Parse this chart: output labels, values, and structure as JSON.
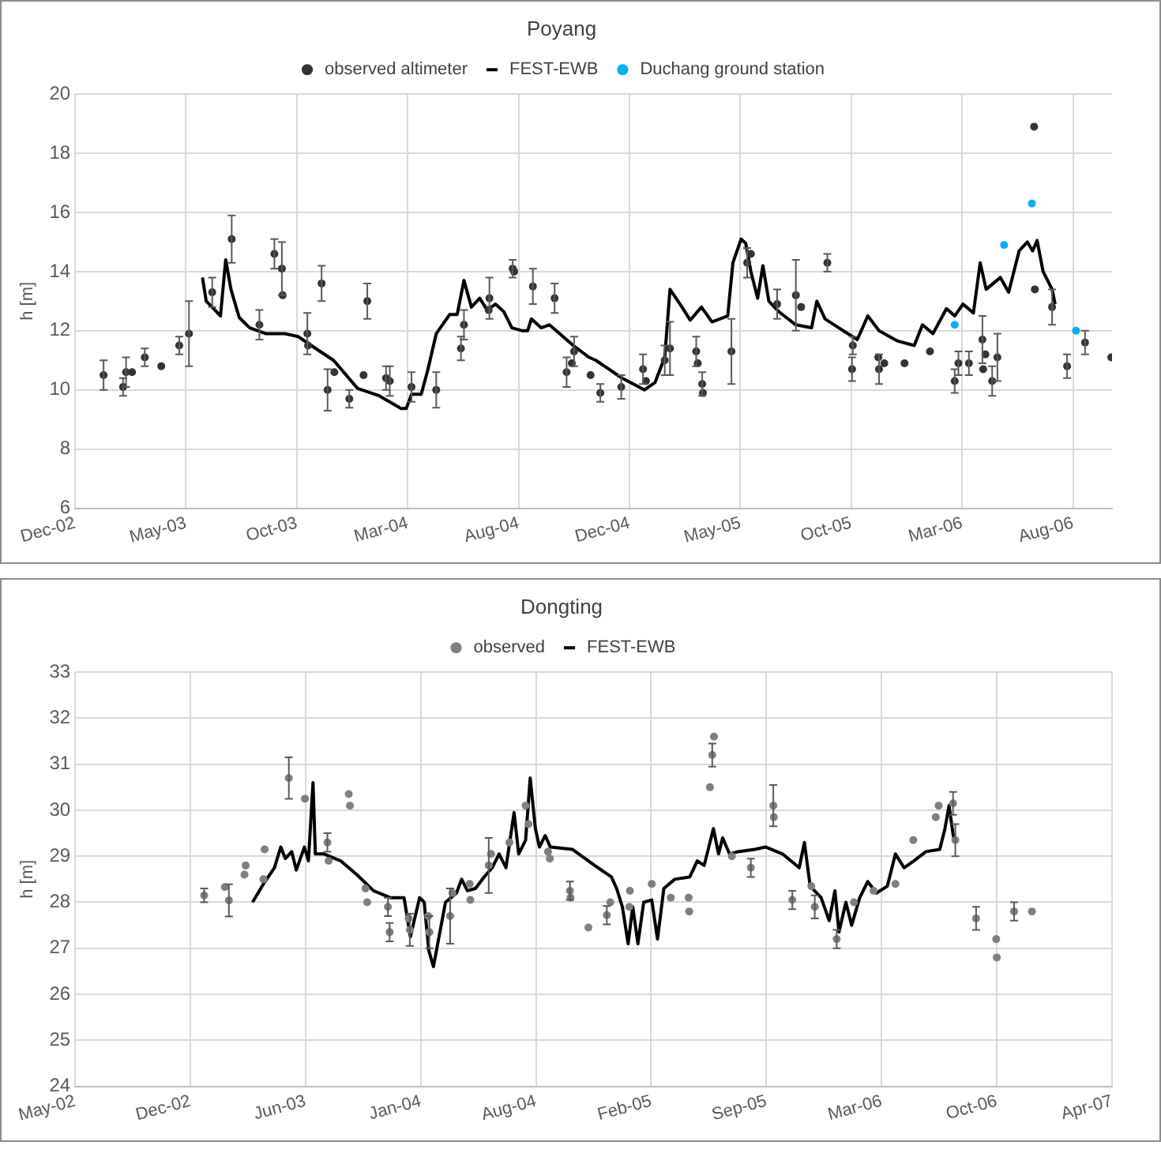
{
  "chart_data": [
    {
      "type": "scatter",
      "title": "Poyang",
      "ylabel": "h [m]",
      "legend": "top",
      "grid": true,
      "xlim": [
        "2002-12-20",
        "2006-10-04"
      ],
      "xticks": [
        {
          "value": "2002-12-20",
          "label": "Dec-02"
        },
        {
          "value": "2003-05-17",
          "label": "May-03"
        },
        {
          "value": "2003-10-12",
          "label": "Oct-03"
        },
        {
          "value": "2004-03-08",
          "label": "Mar-04"
        },
        {
          "value": "2004-08-03",
          "label": "Aug-04"
        },
        {
          "value": "2004-12-29",
          "label": "Dec-04"
        },
        {
          "value": "2005-05-26",
          "label": "May-05"
        },
        {
          "value": "2005-10-21",
          "label": "Oct-05"
        },
        {
          "value": "2006-03-18",
          "label": "Mar-06"
        },
        {
          "value": "2006-08-13",
          "label": "Aug-06"
        }
      ],
      "ylim": [
        6,
        20
      ],
      "yticks": [
        6,
        8,
        10,
        12,
        14,
        16,
        18,
        20
      ],
      "series": [
        {
          "name": "observed altimeter",
          "type": "scatter",
          "marker": "circle",
          "color": "#333333",
          "x": [
            "2003-01-27",
            "2003-02-22",
            "2003-02-26",
            "2003-03-06",
            "2003-03-23",
            "2003-04-14",
            "2003-05-08",
            "2003-05-21",
            "2003-06-21",
            "2003-07-17",
            "2003-08-23",
            "2003-09-12",
            "2003-09-22",
            "2003-09-23",
            "2003-10-26",
            "2003-10-27",
            "2003-11-14",
            "2003-11-22",
            "2003-12-01",
            "2003-12-21",
            "2004-01-09",
            "2004-01-14",
            "2004-02-08",
            "2004-02-13",
            "2004-03-13",
            "2004-04-15",
            "2004-05-18",
            "2004-05-22",
            "2004-06-24",
            "2004-06-25",
            "2004-07-26",
            "2004-07-28",
            "2004-08-22",
            "2004-09-20",
            "2004-10-06",
            "2004-10-13",
            "2004-10-16",
            "2004-11-07",
            "2004-11-20",
            "2004-12-18",
            "2005-01-16",
            "2005-01-20",
            "2005-02-14",
            "2005-02-21",
            "2005-03-28",
            "2005-03-30",
            "2005-04-05",
            "2005-04-06",
            "2005-05-14",
            "2005-06-04",
            "2005-06-09",
            "2005-07-14",
            "2005-08-08",
            "2005-08-15",
            "2005-09-19",
            "2005-10-23",
            "2005-10-22",
            "2005-11-26",
            "2005-11-27",
            "2005-12-04",
            "2005-12-31",
            "2006-02-03",
            "2006-03-08",
            "2006-03-13",
            "2006-03-27",
            "2006-04-14",
            "2006-04-15",
            "2006-04-18",
            "2006-04-27",
            "2006-05-04",
            "2006-06-22",
            "2006-06-23",
            "2006-07-16",
            "2006-08-05",
            "2006-08-29",
            "2006-10-03"
          ],
          "values": [
            10.5,
            10.1,
            10.6,
            10.6,
            11.1,
            10.8,
            11.5,
            11.9,
            13.3,
            15.1,
            12.2,
            14.6,
            14.1,
            13.2,
            11.9,
            11.5,
            13.6,
            10.0,
            10.6,
            9.7,
            10.5,
            13.0,
            10.4,
            10.3,
            10.1,
            10.0,
            11.4,
            12.2,
            12.7,
            13.1,
            14.1,
            14.0,
            13.5,
            13.1,
            10.6,
            10.9,
            11.3,
            10.5,
            9.9,
            10.1,
            10.7,
            10.3,
            11.0,
            11.4,
            11.3,
            10.9,
            10.2,
            9.9,
            11.3,
            14.3,
            14.6,
            12.9,
            13.2,
            12.8,
            14.3,
            11.5,
            10.7,
            11.1,
            10.7,
            10.9,
            10.9,
            11.3,
            10.3,
            10.9,
            10.9,
            11.7,
            10.7,
            11.2,
            10.3,
            11.1,
            18.9,
            13.4,
            12.8,
            10.8,
            11.6,
            11.1
          ],
          "errors": [
            0.5,
            0.3,
            0.5,
            null,
            0.3,
            null,
            0.3,
            1.1,
            0.5,
            0.8,
            0.5,
            0.5,
            0.9,
            null,
            0.7,
            null,
            0.6,
            0.7,
            null,
            0.3,
            null,
            0.6,
            0.4,
            0.5,
            0.5,
            0.6,
            0.4,
            0.5,
            null,
            0.7,
            0.3,
            null,
            0.6,
            0.5,
            0.5,
            null,
            0.5,
            null,
            0.3,
            0.4,
            0.5,
            null,
            0.5,
            0.9,
            0.5,
            null,
            0.4,
            null,
            1.1,
            0.5,
            null,
            0.5,
            1.2,
            null,
            0.3,
            0.3,
            0.4,
            null,
            0.5,
            null,
            null,
            null,
            0.4,
            0.4,
            0.4,
            0.8,
            null,
            null,
            0.5,
            0.8,
            null,
            null,
            0.6,
            0.4,
            0.4,
            null
          ]
        },
        {
          "name": "FEST-EWB",
          "type": "line",
          "marker": "none",
          "color": "#000000",
          "x": [
            "2003-06-08",
            "2003-06-13",
            "2003-06-21",
            "2003-07-02",
            "2003-07-09",
            "2003-07-16",
            "2003-07-27",
            "2003-08-10",
            "2003-09-01",
            "2003-09-26",
            "2003-10-14",
            "2003-11-12",
            "2003-11-30",
            "2004-01-01",
            "2004-01-30",
            "2004-02-28",
            "2004-03-06",
            "2004-03-13",
            "2004-03-26",
            "2004-04-04",
            "2004-04-15",
            "2004-05-03",
            "2004-05-13",
            "2004-05-22",
            "2004-06-01",
            "2004-06-12",
            "2004-06-22",
            "2004-07-03",
            "2004-07-14",
            "2004-07-25",
            "2004-08-08",
            "2004-08-15",
            "2004-08-20",
            "2004-09-02",
            "2004-09-13",
            "2004-10-15",
            "2004-11-05",
            "2004-11-14",
            "2004-12-19",
            "2005-01-18",
            "2005-02-01",
            "2005-02-14",
            "2005-02-21",
            "2005-03-08",
            "2005-03-20",
            "2005-04-04",
            "2005-04-18",
            "2005-05-09",
            "2005-05-16",
            "2005-05-27",
            "2005-06-02",
            "2005-06-09",
            "2005-06-18",
            "2005-06-25",
            "2005-07-03",
            "2005-07-16",
            "2005-08-08",
            "2005-08-29",
            "2005-09-05",
            "2005-09-16",
            "2005-10-12",
            "2005-10-29",
            "2005-11-12",
            "2005-11-27",
            "2005-12-22",
            "2006-01-13",
            "2006-01-24",
            "2006-02-07",
            "2006-02-25",
            "2006-03-08",
            "2006-03-19",
            "2006-04-02",
            "2006-04-11",
            "2006-04-19",
            "2006-05-08",
            "2006-05-19",
            "2006-06-02",
            "2006-06-13",
            "2006-06-20",
            "2006-06-26",
            "2006-07-04",
            "2006-07-16",
            "2006-07-20"
          ],
          "values": [
            13.8,
            13.0,
            12.8,
            12.5,
            14.4,
            13.4,
            12.45,
            12.1,
            11.9,
            11.9,
            11.8,
            11.3,
            11.0,
            10.05,
            9.8,
            9.37,
            9.37,
            9.85,
            9.85,
            10.7,
            11.9,
            12.55,
            12.55,
            13.7,
            12.8,
            13.1,
            12.7,
            12.9,
            12.65,
            12.1,
            12.0,
            12.0,
            12.4,
            12.1,
            12.2,
            11.5,
            11.1,
            11.0,
            10.4,
            10.0,
            10.25,
            11.1,
            13.4,
            12.84,
            12.36,
            12.8,
            12.3,
            12.5,
            14.3,
            15.1,
            14.96,
            14.0,
            13.1,
            14.2,
            13.0,
            12.65,
            12.2,
            12.1,
            13.0,
            12.4,
            11.97,
            11.7,
            12.5,
            12.0,
            11.65,
            11.5,
            12.2,
            11.9,
            12.75,
            12.5,
            12.9,
            12.6,
            14.3,
            13.4,
            13.8,
            13.3,
            14.7,
            15.0,
            14.7,
            15.05,
            14.0,
            13.4,
            12.9
          ]
        },
        {
          "name": "Duchang ground station",
          "type": "scatter",
          "marker": "circle",
          "color": "#00b0f0",
          "x": [
            "2006-03-08",
            "2006-05-13",
            "2006-06-19",
            "2006-08-17"
          ],
          "values": [
            12.2,
            14.9,
            16.3,
            12.0
          ]
        }
      ]
    },
    {
      "type": "scatter",
      "title": "Dongting",
      "ylabel": "h [m]",
      "legend": "top",
      "grid": true,
      "xlim": [
        "2002-05-25",
        "2007-04-29"
      ],
      "xticks": [
        {
          "value": "2002-05-25",
          "label": "May-02"
        },
        {
          "value": "2002-12-11",
          "label": "Dec-02"
        },
        {
          "value": "2003-06-29",
          "label": "Jun-03"
        },
        {
          "value": "2004-01-15",
          "label": "Jan-04"
        },
        {
          "value": "2004-08-02",
          "label": "Aug-04"
        },
        {
          "value": "2005-02-18",
          "label": "Feb-05"
        },
        {
          "value": "2005-09-06",
          "label": "Sep-05"
        },
        {
          "value": "2006-03-25",
          "label": "Mar-06"
        },
        {
          "value": "2006-10-11",
          "label": "Oct-06"
        },
        {
          "value": "2007-04-29",
          "label": "Apr-07"
        }
      ],
      "ylim": [
        24,
        33
      ],
      "yticks": [
        24,
        25,
        26,
        27,
        28,
        29,
        30,
        31,
        32,
        33
      ],
      "series": [
        {
          "name": "observed",
          "type": "scatter",
          "marker": "circle",
          "color": "#7f7f7f",
          "x": [
            "2003-01-04",
            "2003-02-09",
            "2003-02-16",
            "2003-03-15",
            "2003-03-17",
            "2003-04-17",
            "2003-04-19",
            "2003-05-31",
            "2003-06-28",
            "2003-08-06",
            "2003-08-08",
            "2003-09-12",
            "2003-09-14",
            "2003-10-11",
            "2003-10-14",
            "2003-11-19",
            "2003-11-22",
            "2003-12-25",
            "2003-12-27",
            "2004-01-28",
            "2004-01-30",
            "2004-03-06",
            "2004-03-10",
            "2004-04-09",
            "2004-04-10",
            "2004-05-12",
            "2004-05-16",
            "2004-06-17",
            "2004-07-15",
            "2004-07-20",
            "2004-08-23",
            "2004-08-26",
            "2004-09-30",
            "2004-10-01",
            "2004-11-01",
            "2004-12-03",
            "2004-12-09",
            "2005-01-11",
            "2005-01-12",
            "2005-02-19",
            "2005-03-24",
            "2005-04-24",
            "2005-04-25",
            "2005-05-31",
            "2005-06-04",
            "2005-06-07",
            "2005-07-08",
            "2005-08-10",
            "2005-09-18",
            "2005-09-19",
            "2005-10-21",
            "2005-11-23",
            "2005-11-29",
            "2006-01-06",
            "2006-02-05",
            "2006-03-11",
            "2006-04-18",
            "2006-05-19",
            "2006-06-27",
            "2006-07-02",
            "2006-07-27",
            "2006-07-31",
            "2006-09-05",
            "2006-10-10",
            "2006-10-11",
            "2006-11-10",
            "2006-12-11"
          ],
          "values": [
            28.15,
            28.33,
            28.04,
            28.6,
            28.8,
            28.5,
            29.15,
            30.7,
            30.25,
            29.3,
            28.9,
            30.35,
            30.1,
            28.3,
            28.0,
            27.9,
            27.35,
            27.65,
            27.4,
            27.7,
            27.35,
            27.7,
            28.2,
            28.4,
            28.05,
            28.8,
            29.05,
            29.3,
            30.1,
            29.7,
            29.1,
            28.95,
            28.25,
            28.1,
            27.45,
            27.72,
            28.0,
            27.9,
            28.25,
            28.4,
            28.1,
            28.1,
            27.8,
            30.5,
            31.2,
            31.6,
            29.0,
            28.75,
            30.1,
            29.85,
            28.05,
            28.35,
            27.9,
            27.2,
            28.0,
            28.25,
            28.4,
            29.35,
            29.85,
            30.1,
            30.15,
            29.35,
            27.65,
            27.2,
            26.8,
            27.8,
            27.8
          ],
          "errors": [
            0.15,
            null,
            0.35,
            null,
            null,
            null,
            null,
            0.45,
            null,
            0.2,
            null,
            null,
            null,
            null,
            null,
            0.2,
            0.2,
            null,
            0.35,
            null,
            0.35,
            0.6,
            null,
            null,
            null,
            0.6,
            null,
            null,
            null,
            null,
            null,
            null,
            0.2,
            null,
            null,
            0.2,
            null,
            null,
            null,
            null,
            null,
            null,
            null,
            null,
            0.25,
            null,
            null,
            0.2,
            0.45,
            null,
            0.2,
            null,
            0.25,
            0.2,
            null,
            null,
            null,
            null,
            null,
            null,
            0.25,
            0.35,
            0.25,
            null,
            null,
            0.2,
            null
          ]
        },
        {
          "name": "FEST-EWB",
          "type": "line",
          "marker": "none",
          "color": "#000000",
          "x": [
            "2003-03-29",
            "2003-04-17",
            "2003-05-06",
            "2003-05-17",
            "2003-05-25",
            "2003-06-05",
            "2003-06-13",
            "2003-06-27",
            "2003-07-04",
            "2003-07-12",
            "2003-07-16",
            "2003-07-31",
            "2003-08-29",
            "2003-09-26",
            "2003-10-25",
            "2003-11-23",
            "2003-12-17",
            "2003-12-28",
            "2004-01-13",
            "2004-01-21",
            "2004-01-29",
            "2004-02-06",
            "2004-02-12",
            "2004-02-27",
            "2004-03-17",
            "2004-03-26",
            "2004-04-05",
            "2004-04-19",
            "2004-05-04",
            "2004-05-18",
            "2004-05-30",
            "2004-06-11",
            "2004-06-25",
            "2004-07-03",
            "2004-07-15",
            "2004-07-23",
            "2004-08-01",
            "2004-08-08",
            "2004-08-18",
            "2004-08-27",
            "2004-10-04",
            "2004-11-01",
            "2004-11-12",
            "2004-12-11",
            "2004-12-20",
            "2004-12-30",
            "2005-01-09",
            "2005-01-17",
            "2005-01-26",
            "2005-02-05",
            "2005-02-19",
            "2005-03-01",
            "2005-03-12",
            "2005-03-31",
            "2005-04-26",
            "2005-05-09",
            "2005-05-21",
            "2005-06-06",
            "2005-06-15",
            "2005-06-22",
            "2005-07-04",
            "2005-07-19",
            "2005-08-17",
            "2005-09-05",
            "2005-10-04",
            "2005-11-02",
            "2005-11-11",
            "2005-11-21",
            "2005-12-10",
            "2005-12-24",
            "2006-01-03",
            "2006-01-10",
            "2006-01-22",
            "2006-02-01",
            "2006-02-15",
            "2006-03-01",
            "2006-03-16",
            "2006-04-04",
            "2006-04-18",
            "2006-05-03",
            "2006-05-20",
            "2006-06-10",
            "2006-07-04",
            "2006-07-13",
            "2006-07-20",
            "2006-07-28"
          ],
          "values": [
            28.0,
            28.4,
            28.75,
            29.2,
            28.95,
            29.1,
            28.7,
            29.2,
            28.9,
            30.6,
            29.05,
            29.05,
            28.9,
            28.6,
            28.25,
            28.1,
            28.1,
            27.25,
            28.1,
            28.0,
            26.95,
            26.6,
            27.0,
            28.0,
            28.2,
            28.5,
            28.25,
            28.3,
            28.55,
            28.75,
            29.05,
            28.75,
            29.95,
            29.05,
            29.35,
            30.7,
            29.6,
            29.2,
            29.45,
            29.2,
            29.15,
            28.9,
            28.8,
            28.55,
            28.3,
            27.9,
            27.1,
            27.9,
            27.1,
            28.0,
            28.05,
            27.2,
            28.3,
            28.5,
            28.55,
            28.9,
            28.8,
            29.6,
            29.05,
            29.4,
            29.05,
            29.1,
            29.15,
            29.2,
            29.05,
            28.75,
            29.3,
            28.35,
            28.1,
            27.6,
            28.25,
            27.35,
            28.0,
            27.5,
            28.1,
            28.45,
            28.2,
            28.35,
            29.05,
            28.75,
            28.9,
            29.1,
            29.15,
            29.6,
            30.1,
            29.4
          ]
        }
      ]
    }
  ]
}
